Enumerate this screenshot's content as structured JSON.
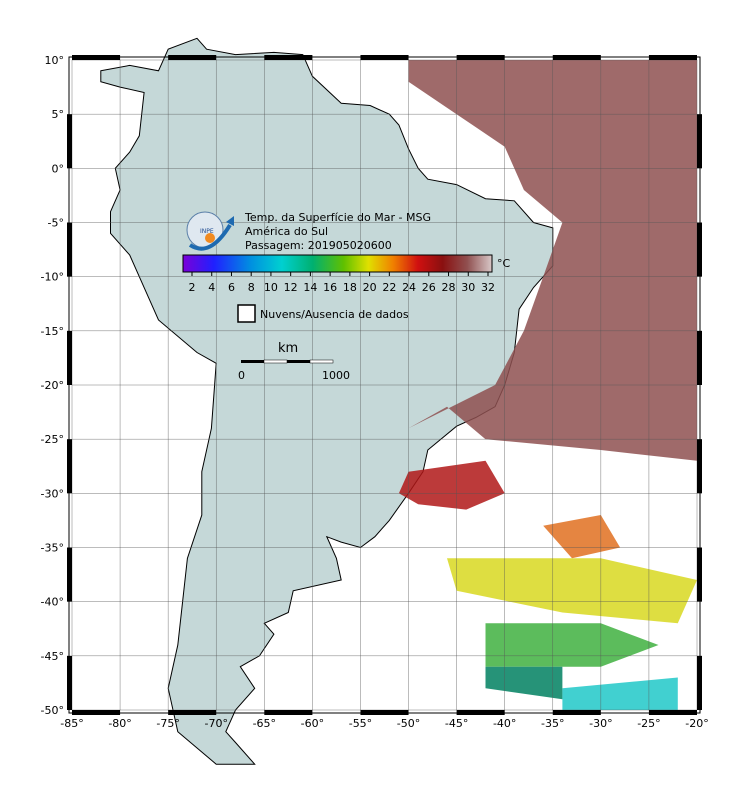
{
  "map": {
    "title": "Temp. da Superfície do Mar - MSG",
    "region": "América do Sul",
    "pass": "Passagem: 201905020600",
    "logo": "INPE",
    "colorbar": {
      "ticks": [
        2,
        4,
        6,
        8,
        10,
        12,
        14,
        16,
        18,
        20,
        22,
        24,
        26,
        28,
        30,
        32
      ],
      "unit": "°C"
    },
    "legend": "Nuvens/Ausencia de dados",
    "scale": {
      "unit": "km",
      "start": "0",
      "end": "1000"
    },
    "lon_ticks": [
      {
        "value": -85,
        "label": "-85°"
      },
      {
        "value": -80,
        "label": "-80°"
      },
      {
        "value": -75,
        "label": "-75°"
      },
      {
        "value": -70,
        "label": "-70°"
      },
      {
        "value": -65,
        "label": "-65°"
      },
      {
        "value": -60,
        "label": "-60°"
      },
      {
        "value": -55,
        "label": "-55°"
      },
      {
        "value": -50,
        "label": "-50°"
      },
      {
        "value": -45,
        "label": "-45°"
      },
      {
        "value": -40,
        "label": "-40°"
      },
      {
        "value": -35,
        "label": "-35°"
      },
      {
        "value": -30,
        "label": "-30°"
      },
      {
        "value": -25,
        "label": "-25°"
      },
      {
        "value": -20,
        "label": "-20°"
      }
    ],
    "lat_ticks": [
      {
        "value": 10,
        "label": "10°"
      },
      {
        "value": 5,
        "label": "5°"
      },
      {
        "value": 0,
        "label": "0°"
      },
      {
        "value": -5,
        "label": "-5°"
      },
      {
        "value": -10,
        "label": "-10°"
      },
      {
        "value": -15,
        "label": "-15°"
      },
      {
        "value": -20,
        "label": "-20°"
      },
      {
        "value": -25,
        "label": "-25°"
      },
      {
        "value": -30,
        "label": "-30°"
      },
      {
        "value": -35,
        "label": "-35°"
      },
      {
        "value": -40,
        "label": "-40°"
      },
      {
        "value": -45,
        "label": "-45°"
      },
      {
        "value": -50,
        "label": "-50°"
      }
    ]
  }
}
